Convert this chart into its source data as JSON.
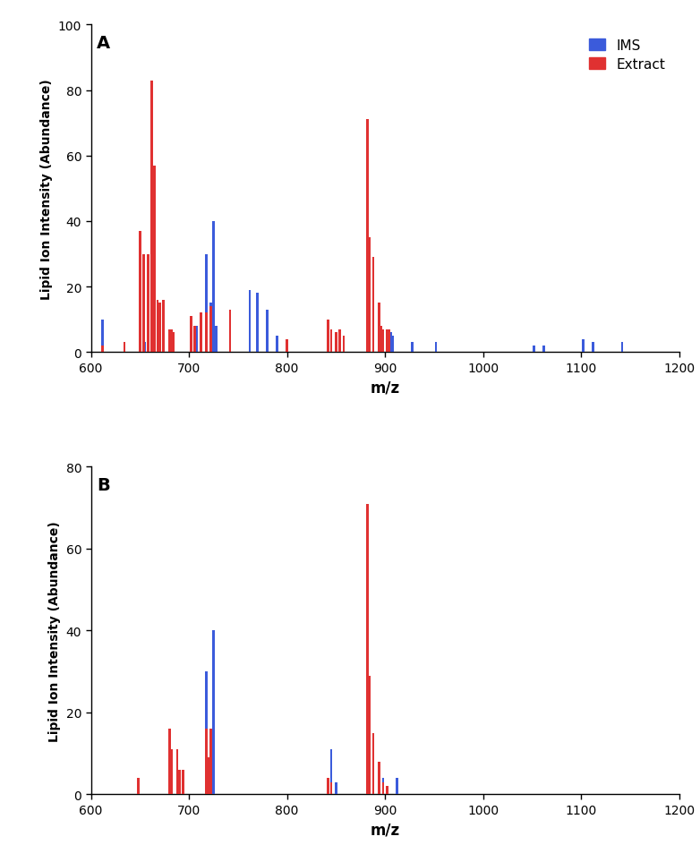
{
  "panel_A": {
    "ims_bars": [
      [
        612,
        10
      ],
      [
        650,
        4
      ],
      [
        655,
        3
      ],
      [
        662,
        4
      ],
      [
        665,
        4
      ],
      [
        702,
        11
      ],
      [
        708,
        8
      ],
      [
        718,
        30
      ],
      [
        722,
        15
      ],
      [
        725,
        40
      ],
      [
        728,
        8
      ],
      [
        762,
        19
      ],
      [
        770,
        18
      ],
      [
        780,
        13
      ],
      [
        790,
        5
      ],
      [
        842,
        4
      ],
      [
        845,
        3
      ],
      [
        854,
        5
      ],
      [
        882,
        29
      ],
      [
        888,
        14
      ],
      [
        896,
        7
      ],
      [
        898,
        4
      ],
      [
        906,
        6
      ],
      [
        908,
        5
      ],
      [
        928,
        3
      ],
      [
        952,
        3
      ],
      [
        1052,
        2
      ],
      [
        1062,
        2
      ],
      [
        1102,
        4
      ],
      [
        1112,
        3
      ],
      [
        1142,
        3
      ]
    ],
    "extract_bars": [
      [
        612,
        2
      ],
      [
        634,
        3
      ],
      [
        650,
        37
      ],
      [
        654,
        30
      ],
      [
        658,
        30
      ],
      [
        662,
        83
      ],
      [
        665,
        57
      ],
      [
        668,
        16
      ],
      [
        670,
        15
      ],
      [
        674,
        16
      ],
      [
        680,
        7
      ],
      [
        682,
        7
      ],
      [
        684,
        6
      ],
      [
        702,
        11
      ],
      [
        706,
        8
      ],
      [
        712,
        12
      ],
      [
        718,
        12
      ],
      [
        722,
        14
      ],
      [
        742,
        13
      ],
      [
        800,
        4
      ],
      [
        842,
        10
      ],
      [
        845,
        7
      ],
      [
        850,
        6
      ],
      [
        854,
        7
      ],
      [
        858,
        5
      ],
      [
        882,
        71
      ],
      [
        884,
        35
      ],
      [
        888,
        29
      ],
      [
        894,
        15
      ],
      [
        896,
        8
      ],
      [
        898,
        7
      ],
      [
        902,
        7
      ],
      [
        904,
        7
      ]
    ],
    "ylim": [
      0,
      100
    ],
    "yticks": [
      0,
      20,
      40,
      60,
      80,
      100
    ],
    "xlim": [
      600,
      1200
    ],
    "xticks": [
      600,
      700,
      800,
      900,
      1000,
      1100,
      1200
    ],
    "ylabel": "Lipid Ion Intensity (Abundance)",
    "xlabel": "m/z",
    "panel_label": "A"
  },
  "panel_B": {
    "ims_bars": [
      [
        718,
        30
      ],
      [
        725,
        40
      ],
      [
        845,
        11
      ],
      [
        850,
        3
      ],
      [
        882,
        4
      ],
      [
        888,
        14
      ],
      [
        898,
        4
      ],
      [
        912,
        4
      ]
    ],
    "extract_bars": [
      [
        648,
        4
      ],
      [
        680,
        16
      ],
      [
        682,
        11
      ],
      [
        688,
        11
      ],
      [
        690,
        6
      ],
      [
        694,
        6
      ],
      [
        718,
        16
      ],
      [
        720,
        9
      ],
      [
        722,
        16
      ],
      [
        842,
        4
      ],
      [
        845,
        3
      ],
      [
        882,
        71
      ],
      [
        884,
        29
      ],
      [
        888,
        15
      ],
      [
        894,
        8
      ],
      [
        898,
        3
      ],
      [
        902,
        2
      ]
    ],
    "ylim": [
      0,
      80
    ],
    "yticks": [
      0,
      20,
      40,
      60,
      80
    ],
    "xlim": [
      600,
      1200
    ],
    "xticks": [
      600,
      700,
      800,
      900,
      1000,
      1100,
      1200
    ],
    "ylabel": "Lipid Ion Intensity (Abundance)",
    "xlabel": "m/z",
    "panel_label": "B"
  },
  "ims_color": "#3b5bdb",
  "extract_color": "#e03131",
  "bar_width": 2.5,
  "figsize": [
    7.82,
    9.45
  ],
  "dpi": 100
}
